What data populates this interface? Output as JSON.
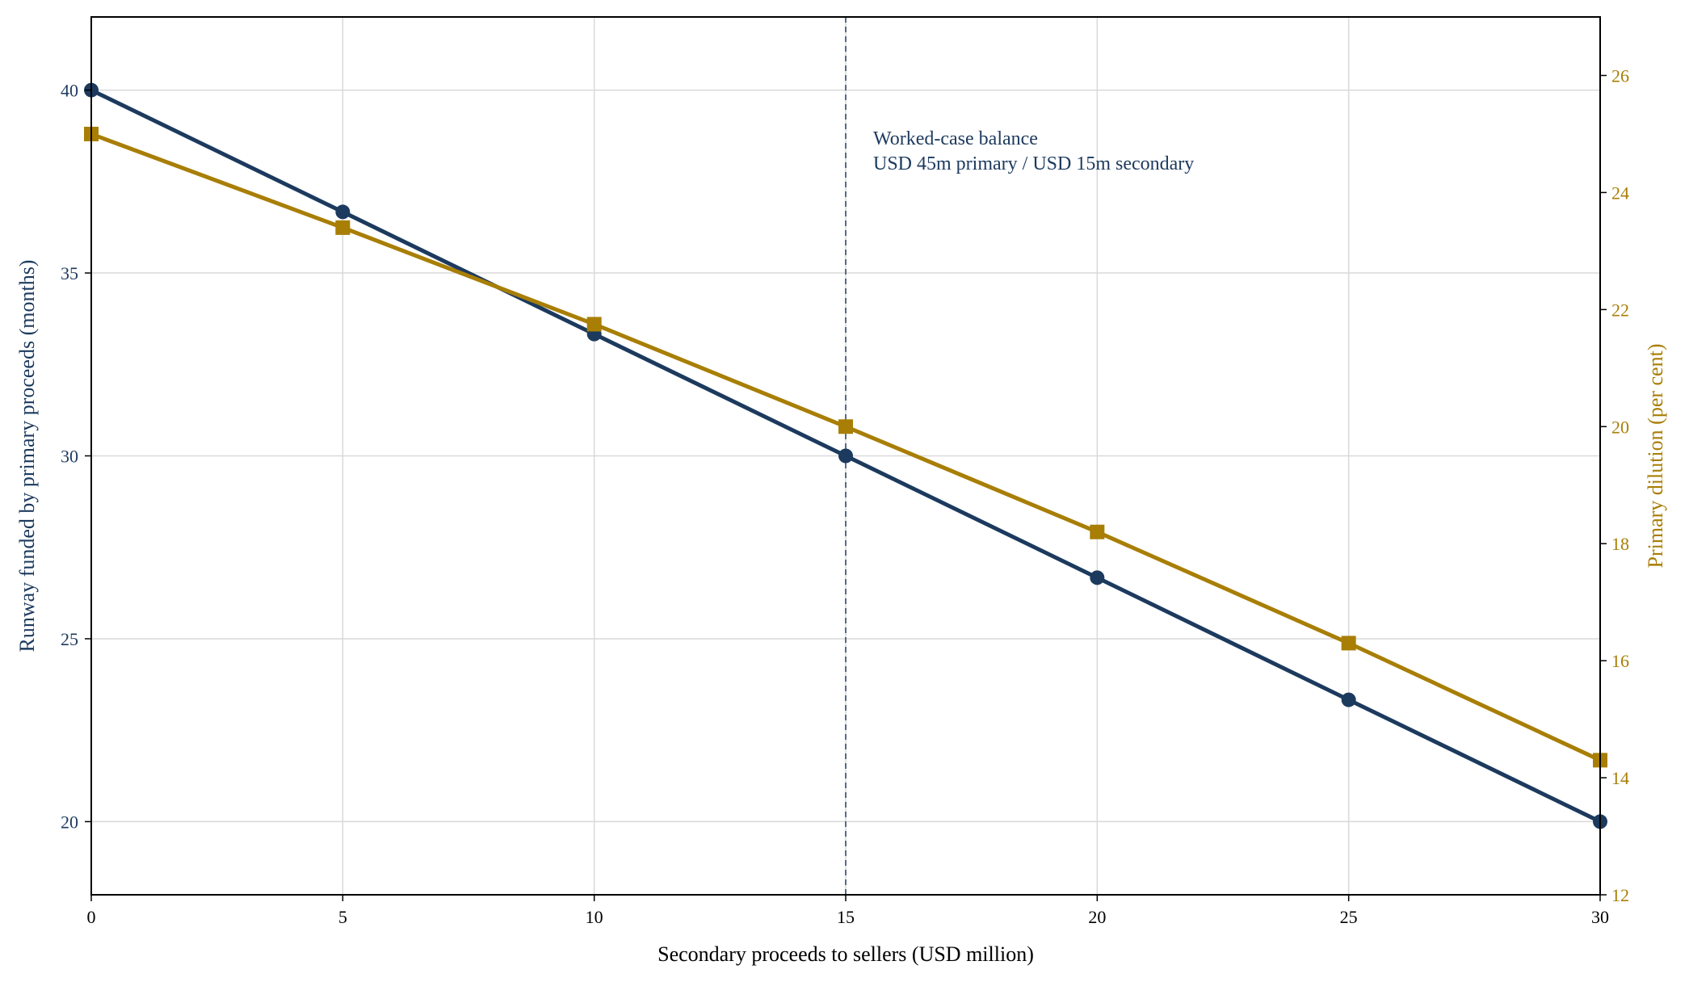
{
  "chart_data": {
    "type": "line",
    "title": "",
    "xlabel": "Secondary proceeds to sellers (USD million)",
    "ylabel_left": "Runway funded by primary proceeds (months)",
    "ylabel_right": "Primary dilution (per cent)",
    "xlim": [
      0,
      30
    ],
    "ylim_left": [
      18,
      42
    ],
    "ylim_right": [
      12,
      27
    ],
    "x_ticks": [
      0,
      5,
      10,
      15,
      20,
      25,
      30
    ],
    "y_ticks_left": [
      20,
      25,
      30,
      35,
      40
    ],
    "y_ticks_right": [
      12,
      14,
      16,
      18,
      20,
      22,
      24,
      26
    ],
    "grid": true,
    "x": [
      0,
      5,
      10,
      15,
      20,
      25,
      30
    ],
    "series": [
      {
        "axis": "left",
        "color": "#1c3a5e",
        "marker": "circle",
        "values": [
          40,
          36.67,
          33.33,
          30,
          26.67,
          23.33,
          20
        ]
      },
      {
        "axis": "right",
        "color": "#a87e05",
        "marker": "square",
        "values": [
          25.0,
          23.4,
          21.75,
          20.0,
          18.2,
          16.3,
          14.3
        ]
      }
    ],
    "reference_line": {
      "x": 15,
      "style": "dashed",
      "color": "#5a6a82",
      "annotation": [
        "Worked-case balance",
        "USD 45m primary / USD 15m secondary"
      ]
    }
  }
}
